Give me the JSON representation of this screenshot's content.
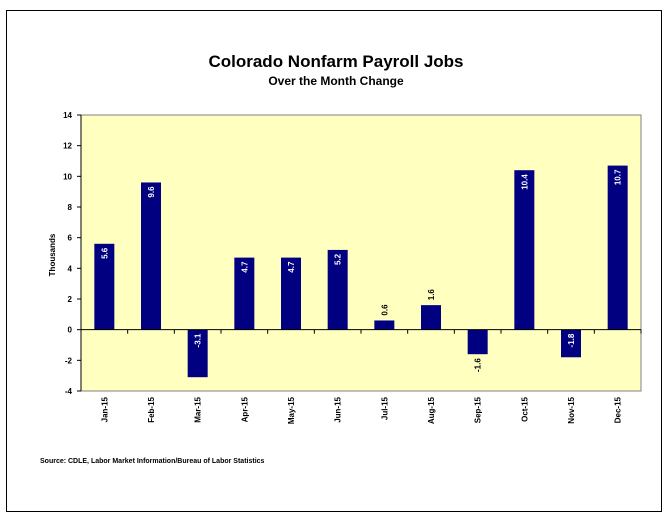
{
  "chart_data": {
    "type": "bar",
    "title": "Colorado Nonfarm Payroll Jobs",
    "subtitle": "Over the Month Change",
    "ylabel": "Thousands",
    "xlabel": "",
    "categories": [
      "Jan-15",
      "Feb-15",
      "Mar-15",
      "Apr-15",
      "May-15",
      "Jun-15",
      "Jul-15",
      "Aug-15",
      "Sep-15",
      "Oct-15",
      "Nov-15",
      "Dec-15"
    ],
    "values": [
      5.6,
      9.6,
      -3.1,
      4.7,
      4.7,
      5.2,
      0.6,
      1.6,
      -1.6,
      10.4,
      -1.8,
      10.7
    ],
    "data_labels": [
      "5.6",
      "9.6",
      "-3.1",
      "4.7",
      "4.7",
      "5.2",
      "0.6",
      "1.6",
      "-1.6",
      "10.4",
      "-1.8",
      "10.7"
    ],
    "yticks": [
      -4,
      -2,
      0,
      2,
      4,
      6,
      8,
      10,
      12,
      14
    ],
    "ylim": [
      -4,
      14
    ],
    "grid": false,
    "legend": "none",
    "colors": {
      "bar": "#000080",
      "plot_background": "#FFFFC0",
      "label_on_bar": "#ffffff",
      "label_outside": "#000000"
    }
  },
  "source": "Source: CDLE, Labor Market Information/Bureau of Labor Statistics"
}
